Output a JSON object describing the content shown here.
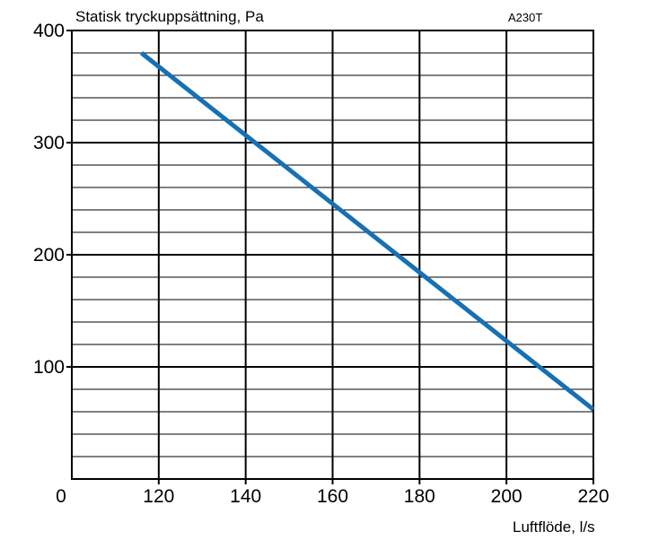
{
  "chart_data": {
    "type": "line",
    "ylabel": "Statisk tryckuppsättning, Pa",
    "xlabel": "Luftflöde, l/s",
    "code": "A230T",
    "x_origin_label": "0",
    "xlim": [
      100,
      220
    ],
    "ylim": [
      0,
      400
    ],
    "x_ticks": [
      120,
      140,
      160,
      180,
      200,
      220
    ],
    "y_ticks": [
      100,
      200,
      300,
      400
    ],
    "x_tick_labels": [
      "120",
      "140",
      "160",
      "180",
      "200",
      "220"
    ],
    "y_tick_labels": [
      "100",
      "200",
      "300",
      "400"
    ],
    "grid": true,
    "minor_y_step": 20,
    "series": [
      {
        "color": "#1670b4",
        "x": [
          116,
          220
        ],
        "y": [
          380,
          62
        ]
      }
    ]
  }
}
